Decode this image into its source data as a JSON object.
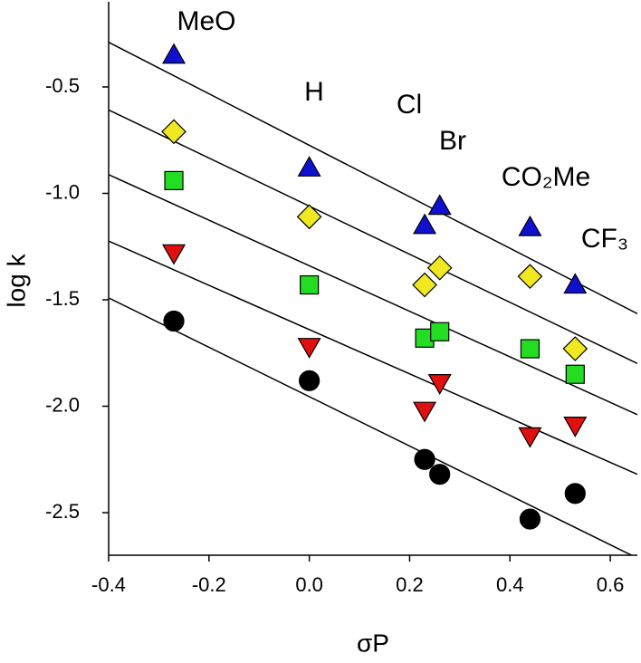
{
  "chart_data": {
    "type": "scatter",
    "xlabel": "σP",
    "ylabel": "log k",
    "x": [
      -0.27,
      0,
      0.23,
      0.26,
      0.44,
      0.53
    ],
    "annotations": [
      "MeO",
      "H",
      "Cl",
      "Br",
      "CO₂Me",
      "CF₃"
    ],
    "series": [
      {
        "color": "#1010d0",
        "marker": "triangle-up",
        "values": [
          -0.35,
          -0.88,
          -1.15,
          -1.06,
          -1.16,
          -1.43
        ],
        "fit": {
          "slope": -1.21,
          "intercept": -0.774
        }
      },
      {
        "color": "#f0e820",
        "marker": "diamond",
        "values": [
          -0.71,
          -1.11,
          -1.43,
          -1.35,
          -1.39,
          -1.73
        ],
        "fit": {
          "slope": -1.13,
          "intercept": -1.06
        }
      },
      {
        "color": "#22dd22",
        "marker": "square",
        "values": [
          -0.94,
          -1.43,
          -1.68,
          -1.65,
          -1.73,
          -1.85
        ],
        "fit": {
          "slope": -1.07,
          "intercept": -1.34
        }
      },
      {
        "color": "#e01010",
        "marker": "triangle-down",
        "values": [
          -1.28,
          -1.72,
          -2.02,
          -1.89,
          -2.14,
          -2.09
        ],
        "fit": {
          "slope": -1.04,
          "intercept": -1.64
        }
      },
      {
        "color": "#000000",
        "marker": "circle",
        "values": [
          -1.6,
          -1.88,
          -2.25,
          -2.32,
          -2.53,
          -2.41
        ],
        "fit": {
          "slope": -1.16,
          "intercept": -1.955
        }
      }
    ],
    "xlim": [
      -0.4,
      0.654
    ],
    "ylim": [
      -2.7,
      -0.1
    ],
    "xticks": [
      -0.4,
      -0.2,
      {
        "value": 0,
        "label": "0.0"
      },
      0.2,
      0.4,
      0.6
    ],
    "yticks": [
      -0.5,
      {
        "value": -1,
        "label": "-1.0"
      },
      -1.5,
      {
        "value": -2,
        "label": "-2.0"
      },
      -2.5
    ]
  }
}
